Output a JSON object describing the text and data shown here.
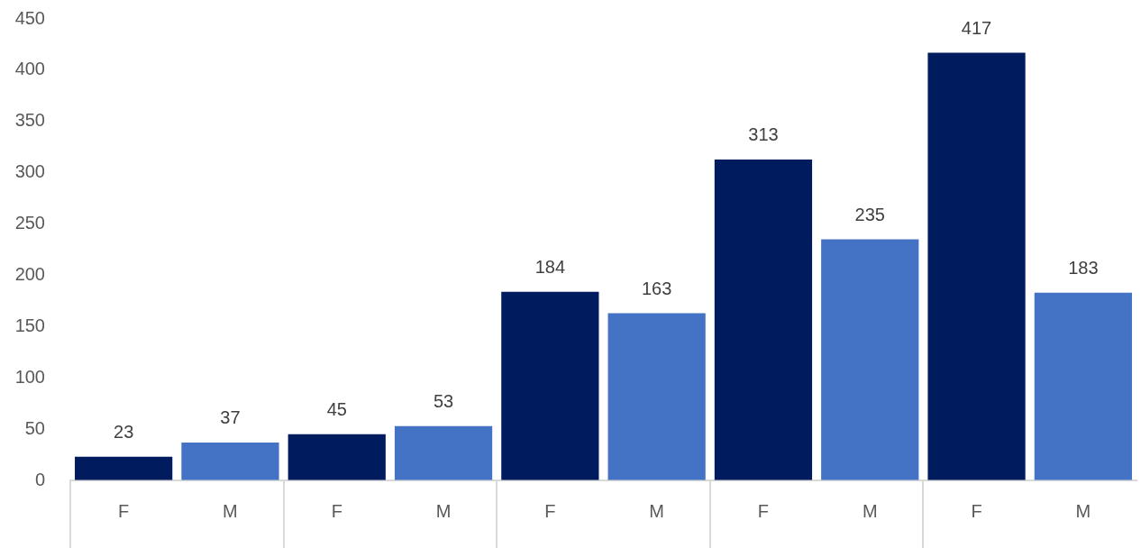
{
  "chart_data": {
    "type": "bar",
    "categories": [
      "F",
      "M",
      "F",
      "M",
      "F",
      "M",
      "F",
      "M",
      "F",
      "M"
    ],
    "values": [
      23,
      37,
      45,
      53,
      184,
      163,
      313,
      235,
      417,
      183
    ],
    "colors": [
      "#001b5e",
      "#4472c4",
      "#001b5e",
      "#4472c4",
      "#001b5e",
      "#4472c4",
      "#001b5e",
      "#4472c4",
      "#001b5e",
      "#4472c4"
    ],
    "ylim": [
      0,
      450
    ],
    "yticks": [
      0,
      50,
      100,
      150,
      200,
      250,
      300,
      350,
      400,
      450
    ],
    "grid": false,
    "data_labels": true
  }
}
